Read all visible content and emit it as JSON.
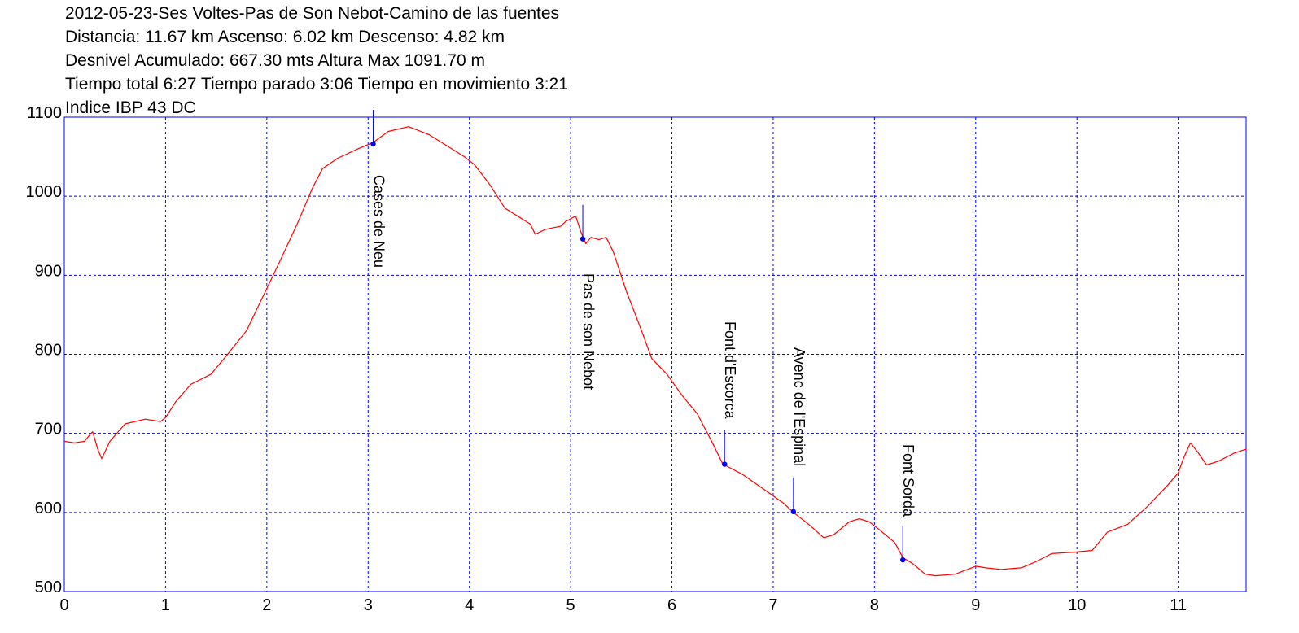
{
  "header": {
    "line1": "2012-05-23-Ses Voltes-Pas de Son Nebot-Camino de las fuentes",
    "line2": "Distancia: 11.67 km Ascenso: 6.02 km Descenso: 4.82 km",
    "line3": "Desnivel Acumulado: 667.30 mts  Altura Max 1091.70 m",
    "line4": "Tiempo total 6:27 Tiempo parado 3:06 Tiempo en movimiento 3:21",
    "line5": "Indice IBP 43 DC"
  },
  "colors": {
    "frame": "#0000ff",
    "grid": "#0000ff",
    "profile": "#ff0000",
    "waypoint": "#0000ff",
    "text": "#000000"
  },
  "chart_data": {
    "type": "line",
    "xlim": [
      0,
      11.67
    ],
    "ylim": [
      500,
      1100
    ],
    "x_ticks": [
      0,
      1,
      2,
      3,
      4,
      5,
      6,
      7,
      8,
      9,
      10,
      11
    ],
    "x_tick_labels": [
      "0",
      "1",
      "2",
      "3",
      "4",
      "5",
      "6",
      "7",
      "8",
      "9",
      "10",
      "11"
    ],
    "y_ticks": [
      500,
      600,
      700,
      800,
      900,
      1000,
      1100
    ],
    "y_tick_labels": [
      "500",
      "600",
      "700",
      "800",
      "900",
      "1000",
      "1100"
    ],
    "grid": true,
    "series": [
      {
        "x": [
          0,
          0.1,
          0.2,
          0.25,
          0.28,
          0.33,
          0.37,
          0.45,
          0.6,
          0.8,
          0.95,
          1.0,
          1.1,
          1.25,
          1.45,
          1.6,
          1.8,
          1.95,
          2.1,
          2.3,
          2.45,
          2.55,
          2.7,
          2.9,
          3.05,
          3.2,
          3.4,
          3.6,
          3.8,
          3.95,
          4.05,
          4.2,
          4.35,
          4.6,
          4.65,
          4.75,
          4.9,
          4.95,
          5.05,
          5.1,
          5.15,
          5.2,
          5.28,
          5.35,
          5.42,
          5.55,
          5.7,
          5.8,
          5.95,
          6.1,
          6.25,
          6.4,
          6.5,
          6.55,
          6.7,
          6.9,
          7.1,
          7.2,
          7.35,
          7.5,
          7.6,
          7.75,
          7.85,
          7.95,
          8.05,
          8.2,
          8.28,
          8.38,
          8.5,
          8.6,
          8.8,
          9.0,
          9.1,
          9.25,
          9.45,
          9.6,
          9.75,
          10.0,
          10.15,
          10.3,
          10.5,
          10.7,
          10.9,
          11.0,
          11.05,
          11.12,
          11.2,
          11.28,
          11.4,
          11.55,
          11.67
        ],
        "y": [
          690,
          688,
          690,
          698,
          702,
          680,
          668,
          690,
          712,
          718,
          715,
          720,
          740,
          762,
          775,
          798,
          830,
          870,
          910,
          965,
          1010,
          1035,
          1048,
          1060,
          1068,
          1082,
          1088,
          1078,
          1062,
          1050,
          1040,
          1015,
          985,
          965,
          952,
          958,
          962,
          968,
          975,
          955,
          940,
          948,
          945,
          948,
          930,
          880,
          830,
          795,
          775,
          748,
          725,
          688,
          662,
          658,
          648,
          630,
          612,
          600,
          585,
          568,
          572,
          588,
          592,
          588,
          578,
          562,
          543,
          535,
          522,
          520,
          522,
          532,
          530,
          528,
          530,
          538,
          548,
          550,
          552,
          575,
          585,
          608,
          635,
          650,
          668,
          688,
          675,
          660,
          665,
          675,
          680
        ]
      }
    ],
    "annotations": [
      {
        "label": "Cases de Neu",
        "x": 3.05,
        "y": 1066
      },
      {
        "label": "Pas de son Nebot",
        "x": 5.12,
        "y": 946
      },
      {
        "label": "Font d'Escorca",
        "x": 6.52,
        "y": 661
      },
      {
        "label": "Avenc de l'Espinal",
        "x": 7.2,
        "y": 601
      },
      {
        "label": "Font Sorda",
        "x": 8.28,
        "y": 540
      }
    ]
  }
}
